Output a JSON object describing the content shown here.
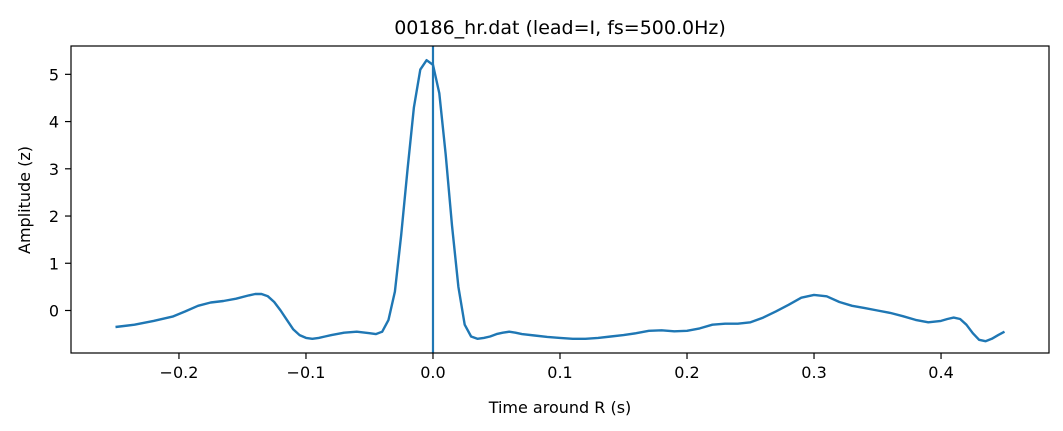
{
  "chart_data": {
    "type": "line",
    "title": "00186_hr.dat (lead=I, fs=500.0Hz)",
    "xlabel": "Time around R (s)",
    "ylabel": "Amplitude (z)",
    "xlim": [
      -0.285,
      0.485
    ],
    "ylim": [
      -0.9,
      5.6
    ],
    "xticks": [
      -0.2,
      -0.1,
      0.0,
      0.1,
      0.2,
      0.3,
      0.4
    ],
    "xtick_labels": [
      "−0.2",
      "−0.1",
      "0.0",
      "0.1",
      "0.2",
      "0.3",
      "0.4"
    ],
    "yticks": [
      0,
      1,
      2,
      3,
      4,
      5
    ],
    "ytick_labels": [
      "0",
      "1",
      "2",
      "3",
      "4",
      "5"
    ],
    "grid": false,
    "line_color": "#1f77b4",
    "vline_x": 0.0,
    "series": [
      {
        "x": [
          -0.25,
          -0.235,
          -0.22,
          -0.205,
          -0.195,
          -0.185,
          -0.175,
          -0.165,
          -0.155,
          -0.145,
          -0.14,
          -0.135,
          -0.13,
          -0.125,
          -0.12,
          -0.115,
          -0.11,
          -0.105,
          -0.1,
          -0.095,
          -0.09,
          -0.085,
          -0.08,
          -0.07,
          -0.06,
          -0.05,
          -0.045,
          -0.04,
          -0.035,
          -0.03,
          -0.025,
          -0.02,
          -0.015,
          -0.01,
          -0.005,
          0.0,
          0.005,
          0.01,
          0.015,
          0.02,
          0.025,
          0.03,
          0.035,
          0.04,
          0.045,
          0.05,
          0.055,
          0.06,
          0.065,
          0.07,
          0.08,
          0.09,
          0.1,
          0.11,
          0.12,
          0.13,
          0.14,
          0.15,
          0.16,
          0.17,
          0.18,
          0.19,
          0.2,
          0.21,
          0.22,
          0.23,
          0.24,
          0.25,
          0.26,
          0.27,
          0.28,
          0.29,
          0.3,
          0.31,
          0.32,
          0.33,
          0.34,
          0.35,
          0.36,
          0.37,
          0.38,
          0.39,
          0.4,
          0.405,
          0.41,
          0.415,
          0.42,
          0.425,
          0.43,
          0.435,
          0.44,
          0.445,
          0.45
        ],
        "y": [
          -0.35,
          -0.3,
          -0.22,
          -0.13,
          -0.02,
          0.1,
          0.17,
          0.2,
          0.25,
          0.32,
          0.35,
          0.35,
          0.3,
          0.18,
          0.0,
          -0.2,
          -0.4,
          -0.52,
          -0.58,
          -0.6,
          -0.58,
          -0.55,
          -0.52,
          -0.47,
          -0.45,
          -0.48,
          -0.5,
          -0.45,
          -0.2,
          0.4,
          1.6,
          3.0,
          4.3,
          5.1,
          5.3,
          5.2,
          4.6,
          3.3,
          1.8,
          0.5,
          -0.3,
          -0.55,
          -0.6,
          -0.58,
          -0.55,
          -0.5,
          -0.47,
          -0.45,
          -0.47,
          -0.5,
          -0.53,
          -0.56,
          -0.58,
          -0.6,
          -0.6,
          -0.58,
          -0.55,
          -0.52,
          -0.48,
          -0.43,
          -0.42,
          -0.44,
          -0.43,
          -0.38,
          -0.3,
          -0.28,
          -0.28,
          -0.25,
          -0.15,
          -0.02,
          0.12,
          0.27,
          0.33,
          0.3,
          0.18,
          0.1,
          0.05,
          0.0,
          -0.05,
          -0.12,
          -0.2,
          -0.25,
          -0.22,
          -0.18,
          -0.15,
          -0.18,
          -0.3,
          -0.48,
          -0.62,
          -0.65,
          -0.6,
          -0.52,
          -0.45
        ]
      }
    ]
  }
}
